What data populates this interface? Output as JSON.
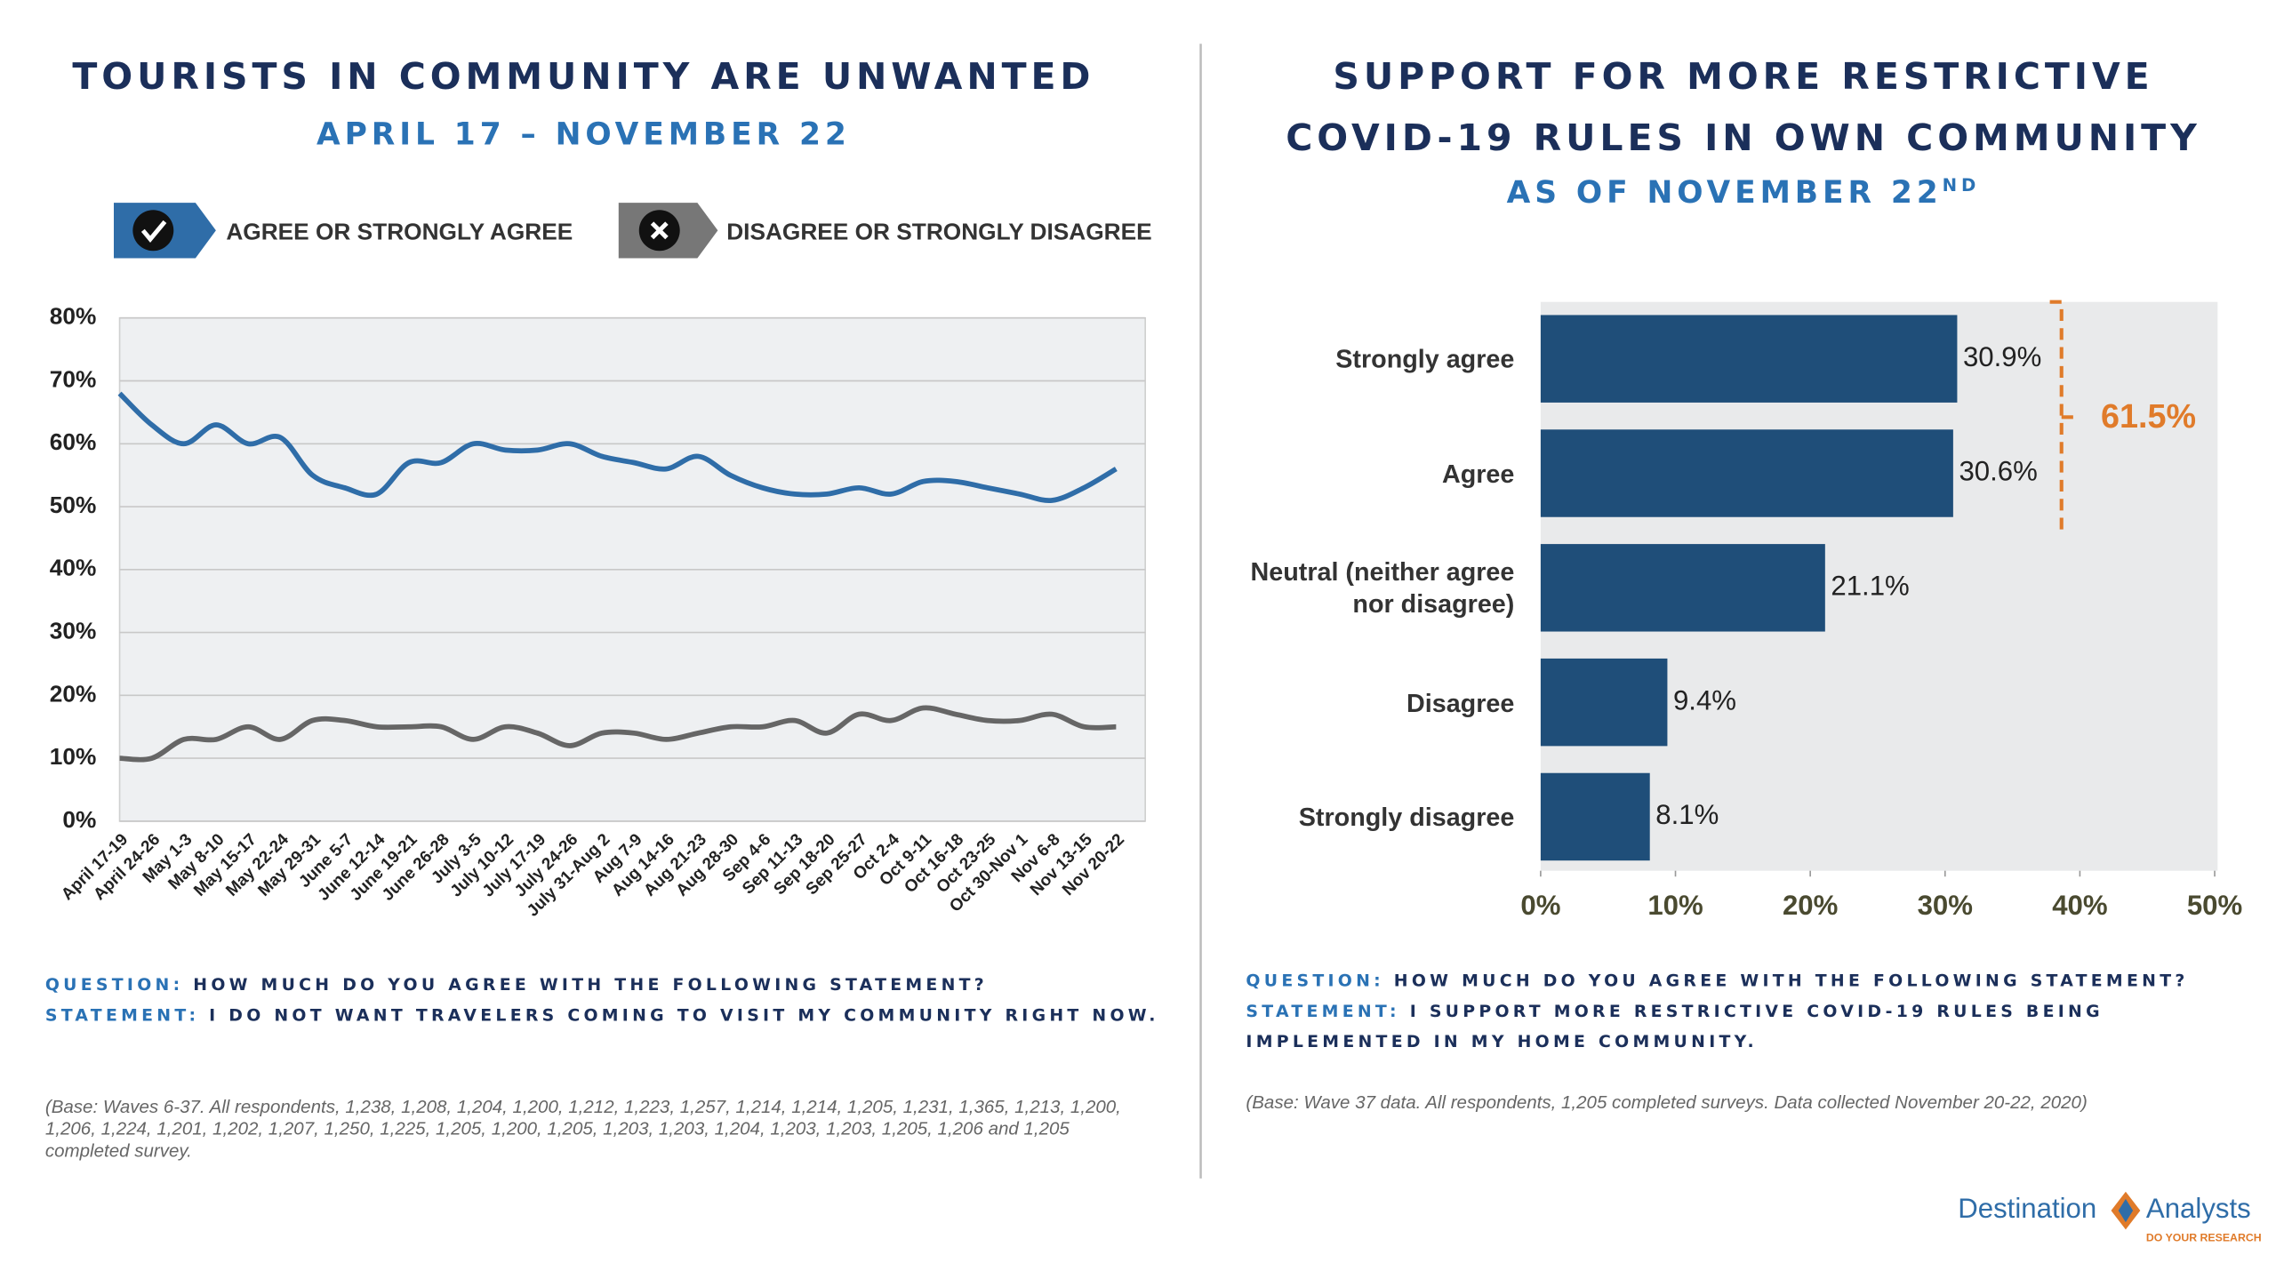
{
  "chart_data": [
    {
      "type": "line",
      "title": "TOURISTS IN COMMUNITY ARE UNWANTED",
      "subtitle": "APRIL 17 – NOVEMBER 22",
      "categories": [
        "April 17-19",
        "April 24-26",
        "May 1-3",
        "May 8-10",
        "May 15-17",
        "May 22-24",
        "May 29-31",
        "June 5-7",
        "June 12-14",
        "June 19-21",
        "June 26-28",
        "July 3-5",
        "July 10-12",
        "July 17-19",
        "July 24-26",
        "July 31-Aug 2",
        "Aug 7-9",
        "Aug 14-16",
        "Aug 21-23",
        "Aug 28-30",
        "Sep 4-6",
        "Sep 11-13",
        "Sep 18-20",
        "Sep 25-27",
        "Oct 2-4",
        "Oct 9-11",
        "Oct 16-18",
        "Oct 23-25",
        "Oct 30-Nov 1",
        "Nov 6-8",
        "Nov 13-15",
        "Nov 20-22"
      ],
      "series": [
        {
          "name": "AGREE OR STRONGLY AGREE",
          "color": "#2f6da8",
          "values": [
            68,
            63,
            60,
            63,
            60,
            61,
            55,
            53,
            52,
            57,
            57,
            60,
            59,
            59,
            60,
            58,
            57,
            56,
            58,
            55,
            53,
            52,
            52,
            53,
            52,
            54,
            54,
            53,
            52,
            51,
            53,
            56
          ]
        },
        {
          "name": "DISAGREE OR STRONGLY DISAGREE",
          "color": "#666666",
          "values": [
            10,
            10,
            13,
            13,
            15,
            13,
            16,
            16,
            15,
            15,
            15,
            13,
            15,
            14,
            12,
            14,
            14,
            13,
            14,
            15,
            15,
            16,
            14,
            17,
            16,
            18,
            17,
            16,
            16,
            17,
            15,
            15
          ]
        }
      ],
      "ylim": [
        0,
        80
      ],
      "yticks": [
        {
          "value": 0,
          "label": "0%"
        },
        {
          "value": 10,
          "label": "10%"
        },
        {
          "value": 20,
          "label": "20%"
        },
        {
          "value": 30,
          "label": "30%"
        },
        {
          "value": 40,
          "label": "40%"
        },
        {
          "value": 50,
          "label": "50%"
        },
        {
          "value": 60,
          "label": "60%"
        },
        {
          "value": 70,
          "label": "70%"
        },
        {
          "value": 80,
          "label": "80%"
        }
      ],
      "grid": true
    },
    {
      "type": "hbar",
      "title_lines": [
        "SUPPORT FOR MORE RESTRICTIVE",
        "COVID-19 RULES IN OWN COMMUNITY"
      ],
      "subtitle": "AS OF NOVEMBER 22",
      "subtitle_suffix": "ND",
      "categories": [
        "Strongly agree",
        "Agree",
        "Neutral (neither agree nor disagree)",
        "Disagree",
        "Strongly disagree"
      ],
      "values": [
        30.9,
        30.6,
        21.1,
        9.4,
        8.1
      ],
      "value_labels": [
        "30.9%",
        "30.6%",
        "21.1%",
        "9.4%",
        "8.1%"
      ],
      "color": "#1f4e79",
      "xlim": [
        0,
        50
      ],
      "xticks": [
        {
          "value": 0,
          "label": "0%"
        },
        {
          "value": 10,
          "label": "10%"
        },
        {
          "value": 20,
          "label": "20%"
        },
        {
          "value": 30,
          "label": "30%"
        },
        {
          "value": 40,
          "label": "40%"
        },
        {
          "value": 50,
          "label": "50%"
        }
      ],
      "annotation": "61.5%",
      "annotation_color": "#e07b2a"
    }
  ],
  "notes": {
    "left": {
      "question_label": "QUESTION:",
      "question": "HOW MUCH DO YOU AGREE WITH THE FOLLOWING STATEMENT?",
      "statement_label": "STATEMENT:",
      "statement": "I DO NOT WANT TRAVELERS COMING TO VISIT MY COMMUNITY RIGHT NOW.",
      "base": "(Base: Waves 6-37. All respondents, 1,238, 1,208, 1,204, 1,200, 1,212, 1,223, 1,257, 1,214, 1,214, 1,205, 1,231, 1,365, 1,213, 1,200, 1,206, 1,224, 1,201, 1,202, 1,207, 1,250, 1,225, 1,205, 1,200, 1,205, 1,203, 1,203, 1,204, 1,203, 1,203, 1,205, 1,206 and 1,205 completed survey."
    },
    "right": {
      "question_label": "QUESTION:",
      "question": "HOW MUCH DO YOU AGREE WITH THE FOLLOWING STATEMENT?",
      "statement_label": "STATEMENT:",
      "statement": "I SUPPORT MORE RESTRICTIVE COVID-19 RULES BEING IMPLEMENTED IN MY HOME COMMUNITY.",
      "base": "(Base: Wave 37 data. All respondents, 1,205 completed surveys. Data collected November 20-22, 2020)"
    }
  },
  "footer": {
    "logo_left": "Destination",
    "logo_right": "Analysts",
    "tagline": "DO YOUR RESEARCH"
  }
}
